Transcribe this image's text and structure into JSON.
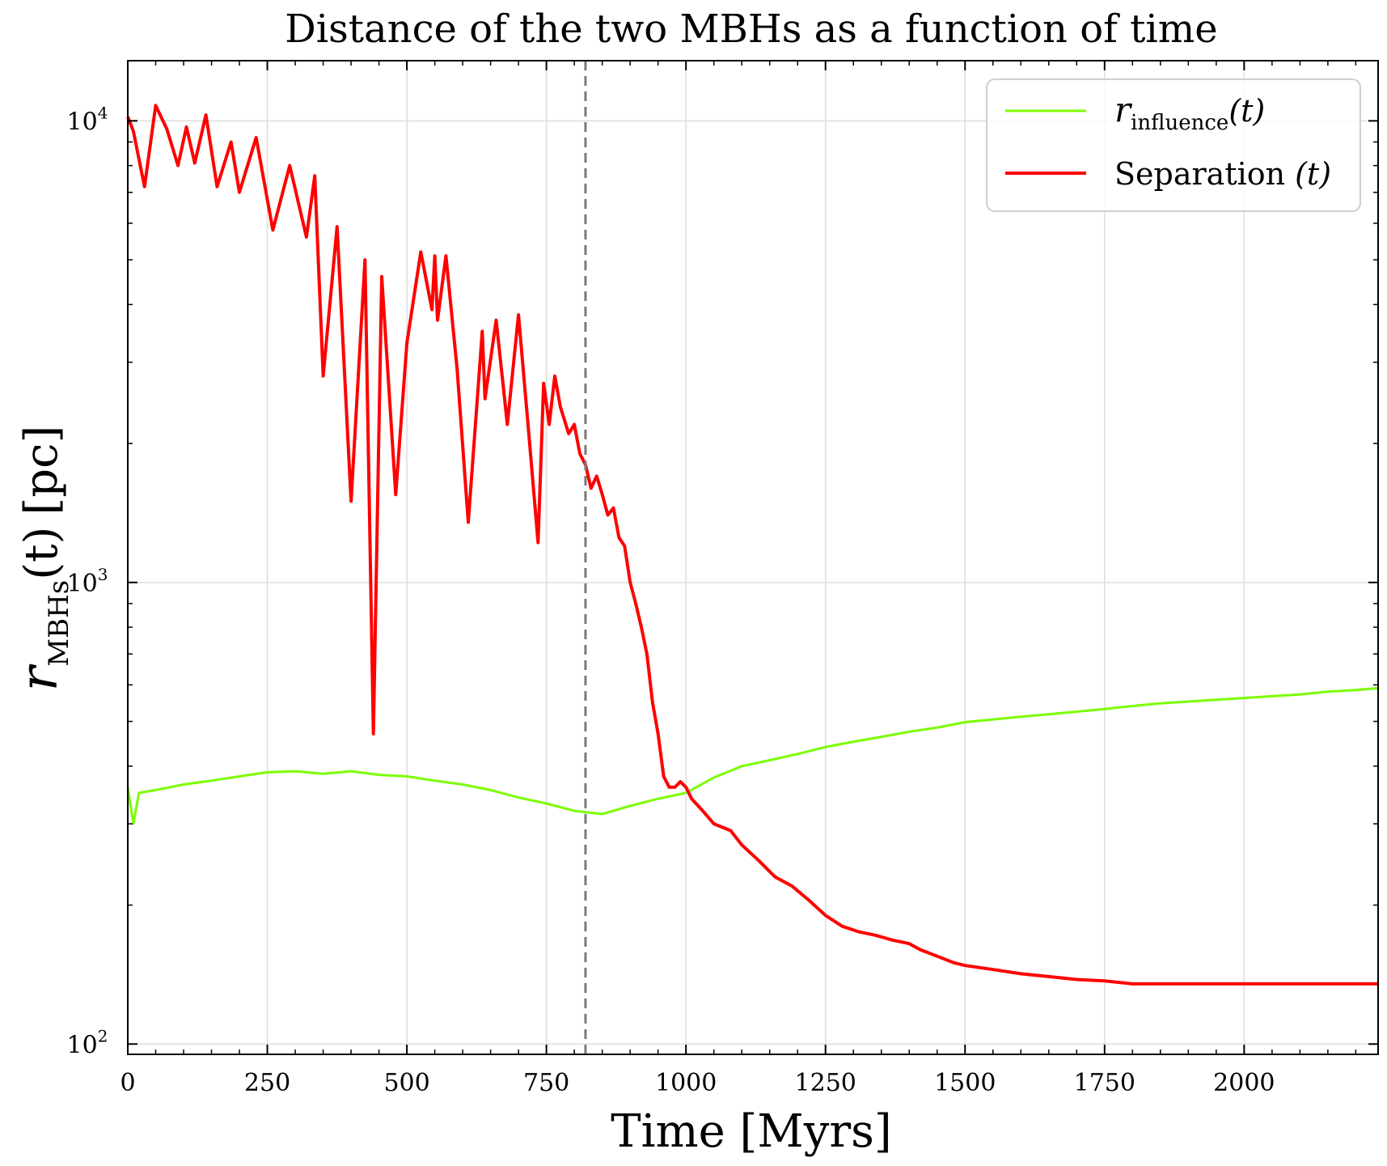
{
  "chart_data": {
    "type": "line",
    "title": "Distance of the two MBHs as a function of time",
    "xlabel": "Time [Myrs]",
    "ylabel": {
      "symbol": "r",
      "subscript": "MBHs",
      "arg": "(t)",
      "unit": "[pc]"
    },
    "xlim": [
      0,
      2240
    ],
    "ylim": [
      95,
      13500
    ],
    "yscale": "log",
    "xticks": [
      0,
      250,
      500,
      750,
      1000,
      1250,
      1500,
      1750,
      2000
    ],
    "xtick_labels": [
      "0",
      "250",
      "500",
      "750",
      "1000",
      "1250",
      "1500",
      "1750",
      "2000"
    ],
    "yticks": [
      100,
      1000,
      10000
    ],
    "ytick_labels": [
      {
        "base": "10",
        "exp": "2"
      },
      {
        "base": "10",
        "exp": "3"
      },
      {
        "base": "10",
        "exp": "4"
      }
    ],
    "grid": true,
    "legend_position": "top-right",
    "vline": {
      "x": 820,
      "color": "#7a7a7a",
      "style": "dashed"
    },
    "series": [
      {
        "name": "r_influence(t)",
        "legend": {
          "symbol": "r",
          "subscript": "influence",
          "arg": "(t)"
        },
        "color": "#7cfc00",
        "x": [
          0,
          10,
          20,
          50,
          100,
          150,
          200,
          250,
          300,
          350,
          400,
          450,
          500,
          550,
          600,
          650,
          700,
          750,
          800,
          850,
          900,
          950,
          1000,
          1050,
          1100,
          1150,
          1200,
          1250,
          1300,
          1350,
          1400,
          1450,
          1500,
          1550,
          1600,
          1650,
          1700,
          1750,
          1800,
          1850,
          1900,
          1950,
          2000,
          2050,
          2100,
          2150,
          2200,
          2240
        ],
        "y": [
          360,
          300,
          350,
          355,
          365,
          372,
          380,
          388,
          390,
          385,
          390,
          383,
          380,
          372,
          365,
          355,
          342,
          332,
          320,
          315,
          328,
          340,
          350,
          378,
          400,
          412,
          425,
          440,
          452,
          463,
          475,
          485,
          498,
          505,
          512,
          518,
          525,
          532,
          540,
          547,
          552,
          557,
          562,
          567,
          572,
          580,
          585,
          590
        ]
      },
      {
        "name": "Separation (t)",
        "legend": {
          "text": "Separation",
          "arg": "(t)"
        },
        "color": "#ff0000",
        "x": [
          0,
          10,
          30,
          50,
          70,
          90,
          105,
          120,
          140,
          160,
          185,
          200,
          230,
          260,
          290,
          320,
          335,
          350,
          375,
          400,
          425,
          440,
          455,
          480,
          500,
          525,
          545,
          550,
          555,
          570,
          590,
          610,
          635,
          640,
          660,
          680,
          700,
          720,
          735,
          745,
          755,
          765,
          775,
          790,
          800,
          810,
          820,
          830,
          840,
          850,
          860,
          870,
          880,
          890,
          900,
          910,
          920,
          930,
          940,
          950,
          960,
          970,
          980,
          990,
          1000,
          1010,
          1020,
          1030,
          1050,
          1080,
          1100,
          1130,
          1160,
          1190,
          1220,
          1250,
          1280,
          1310,
          1340,
          1370,
          1400,
          1420,
          1450,
          1480,
          1500,
          1550,
          1600,
          1650,
          1700,
          1750,
          1800,
          1850,
          1900,
          1950,
          2000,
          2050,
          2100,
          2150,
          2200,
          2240
        ],
        "y": [
          10200,
          9500,
          7200,
          10800,
          9600,
          8000,
          9700,
          8100,
          10300,
          7200,
          9000,
          7000,
          9200,
          5800,
          8000,
          5600,
          7600,
          2800,
          5900,
          1500,
          5000,
          470,
          4600,
          1550,
          3300,
          5200,
          3900,
          5100,
          3700,
          5100,
          2900,
          1350,
          3500,
          2500,
          3700,
          2200,
          3800,
          2000,
          1220,
          2700,
          2200,
          2800,
          2400,
          2100,
          2200,
          1900,
          1800,
          1600,
          1700,
          1550,
          1400,
          1450,
          1250,
          1200,
          1000,
          900,
          800,
          700,
          550,
          470,
          380,
          360,
          360,
          370,
          360,
          340,
          330,
          320,
          300,
          290,
          270,
          250,
          230,
          220,
          205,
          190,
          180,
          175,
          172,
          168,
          165,
          160,
          155,
          150,
          148,
          145,
          142,
          140,
          138,
          137,
          135,
          135,
          135,
          135,
          135,
          135,
          135,
          135,
          135,
          135
        ]
      }
    ]
  }
}
